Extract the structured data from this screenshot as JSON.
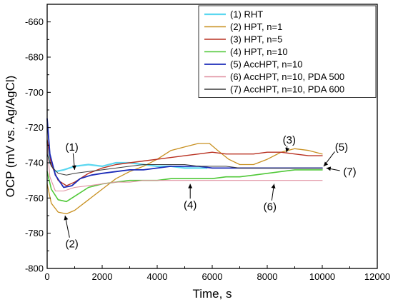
{
  "chart_data": {
    "type": "line",
    "title": "",
    "xlabel": "Time, s",
    "ylabel": "OCP (mV vs. Ag/AgCl)",
    "xlim": [
      0,
      12000
    ],
    "ylim": [
      -800,
      -650
    ],
    "xticks": [
      0,
      2000,
      4000,
      6000,
      8000,
      10000,
      12000
    ],
    "yticks": [
      -800,
      -780,
      -760,
      -740,
      -720,
      -700,
      -680,
      -660
    ],
    "grid": false,
    "legend_position": "top-right",
    "series": [
      {
        "name": "(1) RHT",
        "color": "#5bd7f0",
        "width": 2.2,
        "points": [
          [
            0,
            -728
          ],
          [
            100,
            -740
          ],
          [
            300,
            -745
          ],
          [
            600,
            -744
          ],
          [
            1000,
            -742
          ],
          [
            1500,
            -741
          ],
          [
            2000,
            -742
          ],
          [
            2500,
            -740
          ],
          [
            3000,
            -740
          ],
          [
            3500,
            -741
          ],
          [
            4000,
            -742
          ],
          [
            4500,
            -742
          ],
          [
            5000,
            -743
          ],
          [
            5500,
            -743
          ],
          [
            5800,
            -743
          ]
        ]
      },
      {
        "name": "(2) HPT, n=1",
        "color": "#c89020",
        "width": 1.3,
        "points": [
          [
            0,
            -752
          ],
          [
            150,
            -763
          ],
          [
            400,
            -768
          ],
          [
            700,
            -769
          ],
          [
            1000,
            -767
          ],
          [
            1500,
            -761
          ],
          [
            2000,
            -755
          ],
          [
            2500,
            -749
          ],
          [
            3000,
            -745
          ],
          [
            3500,
            -742
          ],
          [
            4000,
            -738
          ],
          [
            4500,
            -733
          ],
          [
            5000,
            -731
          ],
          [
            5500,
            -729
          ],
          [
            5900,
            -729
          ],
          [
            6200,
            -733
          ],
          [
            6600,
            -738
          ],
          [
            7000,
            -741
          ],
          [
            7500,
            -741
          ],
          [
            8000,
            -738
          ],
          [
            8500,
            -734
          ],
          [
            9000,
            -732
          ],
          [
            9500,
            -733
          ],
          [
            10000,
            -735
          ]
        ]
      },
      {
        "name": "(3) HPT, n=5",
        "color": "#b83020",
        "width": 1.4,
        "points": [
          [
            0,
            -727
          ],
          [
            150,
            -741
          ],
          [
            400,
            -750
          ],
          [
            700,
            -753
          ],
          [
            1000,
            -751
          ],
          [
            1500,
            -746
          ],
          [
            2000,
            -743
          ],
          [
            2500,
            -741
          ],
          [
            3000,
            -740
          ],
          [
            3500,
            -739
          ],
          [
            4000,
            -738
          ],
          [
            4500,
            -737
          ],
          [
            5000,
            -736
          ],
          [
            5500,
            -735
          ],
          [
            6000,
            -734
          ],
          [
            6500,
            -735
          ],
          [
            7000,
            -735
          ],
          [
            7500,
            -735
          ],
          [
            8000,
            -734
          ],
          [
            8500,
            -734
          ],
          [
            9000,
            -735
          ],
          [
            9500,
            -736
          ],
          [
            10000,
            -736
          ]
        ]
      },
      {
        "name": "(4) HPT, n=10",
        "color": "#50c838",
        "width": 1.6,
        "points": [
          [
            0,
            -745
          ],
          [
            150,
            -755
          ],
          [
            400,
            -761
          ],
          [
            700,
            -762
          ],
          [
            1000,
            -759
          ],
          [
            1500,
            -754
          ],
          [
            2000,
            -752
          ],
          [
            2500,
            -751
          ],
          [
            3000,
            -750
          ],
          [
            3500,
            -750
          ],
          [
            4000,
            -750
          ],
          [
            4500,
            -749
          ],
          [
            5000,
            -749
          ],
          [
            5500,
            -749
          ],
          [
            6000,
            -749
          ],
          [
            6500,
            -748
          ],
          [
            7000,
            -748
          ],
          [
            7500,
            -747
          ],
          [
            8000,
            -746
          ],
          [
            8500,
            -745
          ],
          [
            9000,
            -744
          ],
          [
            9500,
            -744
          ],
          [
            10000,
            -744
          ]
        ]
      },
      {
        "name": "(5) AccHPT, n=10",
        "color": "#1b2bb8",
        "width": 1.8,
        "points": [
          [
            0,
            -715
          ],
          [
            100,
            -735
          ],
          [
            300,
            -747
          ],
          [
            600,
            -754
          ],
          [
            900,
            -753
          ],
          [
            1200,
            -749
          ],
          [
            1600,
            -747
          ],
          [
            2000,
            -746
          ],
          [
            2500,
            -745
          ],
          [
            3000,
            -744
          ],
          [
            3500,
            -744
          ],
          [
            4000,
            -743
          ],
          [
            4500,
            -742
          ],
          [
            5000,
            -742
          ],
          [
            5500,
            -742
          ],
          [
            6000,
            -743
          ],
          [
            6500,
            -743
          ],
          [
            7000,
            -743
          ],
          [
            7500,
            -743
          ],
          [
            8000,
            -743
          ],
          [
            8500,
            -743
          ],
          [
            9000,
            -743
          ],
          [
            9500,
            -743
          ],
          [
            10000,
            -743
          ]
        ]
      },
      {
        "name": "(6) AccHPT, n=10, PDA 500",
        "color": "#e090a0",
        "width": 1.1,
        "points": [
          [
            0,
            -730
          ],
          [
            100,
            -748
          ],
          [
            300,
            -756
          ],
          [
            600,
            -756
          ],
          [
            1000,
            -754
          ],
          [
            1500,
            -753
          ],
          [
            2000,
            -752
          ],
          [
            2500,
            -751
          ],
          [
            3000,
            -751
          ],
          [
            3500,
            -750
          ],
          [
            4000,
            -750
          ],
          [
            4500,
            -750
          ],
          [
            5000,
            -750
          ],
          [
            5500,
            -750
          ],
          [
            6000,
            -750
          ],
          [
            6500,
            -750
          ],
          [
            7000,
            -750
          ],
          [
            7500,
            -750
          ],
          [
            8000,
            -750
          ],
          [
            8500,
            -750
          ],
          [
            9000,
            -750
          ],
          [
            9500,
            -750
          ],
          [
            10000,
            -750
          ]
        ]
      },
      {
        "name": "(7) AccHPT, n=10, PDA 600",
        "color": "#3a3a3a",
        "width": 1.0,
        "points": [
          [
            0,
            -735
          ],
          [
            150,
            -742
          ],
          [
            400,
            -746
          ],
          [
            700,
            -747
          ],
          [
            1000,
            -746
          ],
          [
            1500,
            -745
          ],
          [
            2000,
            -744
          ],
          [
            2500,
            -743
          ],
          [
            3000,
            -742
          ],
          [
            3500,
            -741
          ],
          [
            4000,
            -741
          ],
          [
            4500,
            -741
          ],
          [
            5000,
            -741
          ],
          [
            5500,
            -742
          ],
          [
            6000,
            -742
          ],
          [
            6500,
            -742
          ],
          [
            7000,
            -743
          ],
          [
            7500,
            -743
          ],
          [
            8000,
            -743
          ],
          [
            8500,
            -743
          ],
          [
            9000,
            -743
          ],
          [
            9500,
            -743
          ],
          [
            10000,
            -743
          ]
        ]
      }
    ],
    "annotations": [
      {
        "label": "(1)",
        "x": 900,
        "y": -731,
        "ax": 1000,
        "ay": -744
      },
      {
        "label": "(2)",
        "x": 900,
        "y": -786,
        "ax": 650,
        "ay": -770
      },
      {
        "label": "(3)",
        "x": 8800,
        "y": -727,
        "ax": 8700,
        "ay": -734
      },
      {
        "label": "(4)",
        "x": 5200,
        "y": -764,
        "ax": 5200,
        "ay": -752
      },
      {
        "label": "(5)",
        "x": 10700,
        "y": -731,
        "ax": 10050,
        "ay": -742
      },
      {
        "label": "(6)",
        "x": 8100,
        "y": -765,
        "ax": 8250,
        "ay": -752
      },
      {
        "label": "(7)",
        "x": 11000,
        "y": -745,
        "ax": 10150,
        "ay": -743
      }
    ]
  }
}
